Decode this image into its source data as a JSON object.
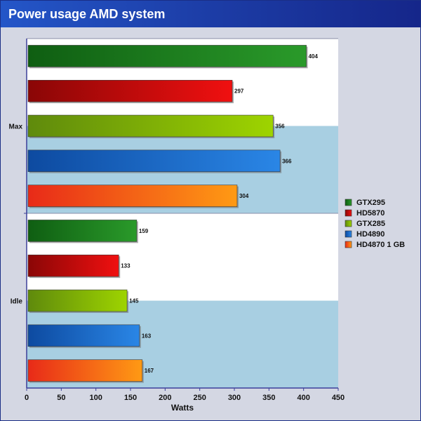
{
  "chart_data": {
    "type": "bar",
    "orientation": "horizontal",
    "title": "Power usage AMD system",
    "xlabel": "Watts",
    "ylabel": "",
    "xlim": [
      0,
      450
    ],
    "xticks": [
      0,
      50,
      100,
      150,
      200,
      250,
      300,
      350,
      400,
      450
    ],
    "categories": [
      "Max",
      "Idle"
    ],
    "series": [
      {
        "name": "GTX295",
        "values": [
          404,
          159
        ],
        "color_light": "#2a9a2a",
        "color_dark": "#0f5e12"
      },
      {
        "name": "HD5870",
        "values": [
          297,
          133
        ],
        "color_light": "#f01010",
        "color_dark": "#8a0606"
      },
      {
        "name": "GTX285",
        "values": [
          356,
          145
        ],
        "color_light": "#9ed400",
        "color_dark": "#5f8a0c"
      },
      {
        "name": "HD4890",
        "values": [
          366,
          163
        ],
        "color_light": "#2a86e6",
        "color_dark": "#0d4aa0"
      },
      {
        "name": "HD4870 1 GB",
        "values": [
          304,
          167
        ],
        "color_light": "#ff9a14",
        "color_dark": "#e82a18"
      }
    ],
    "grid": true,
    "legend_position": "right"
  }
}
